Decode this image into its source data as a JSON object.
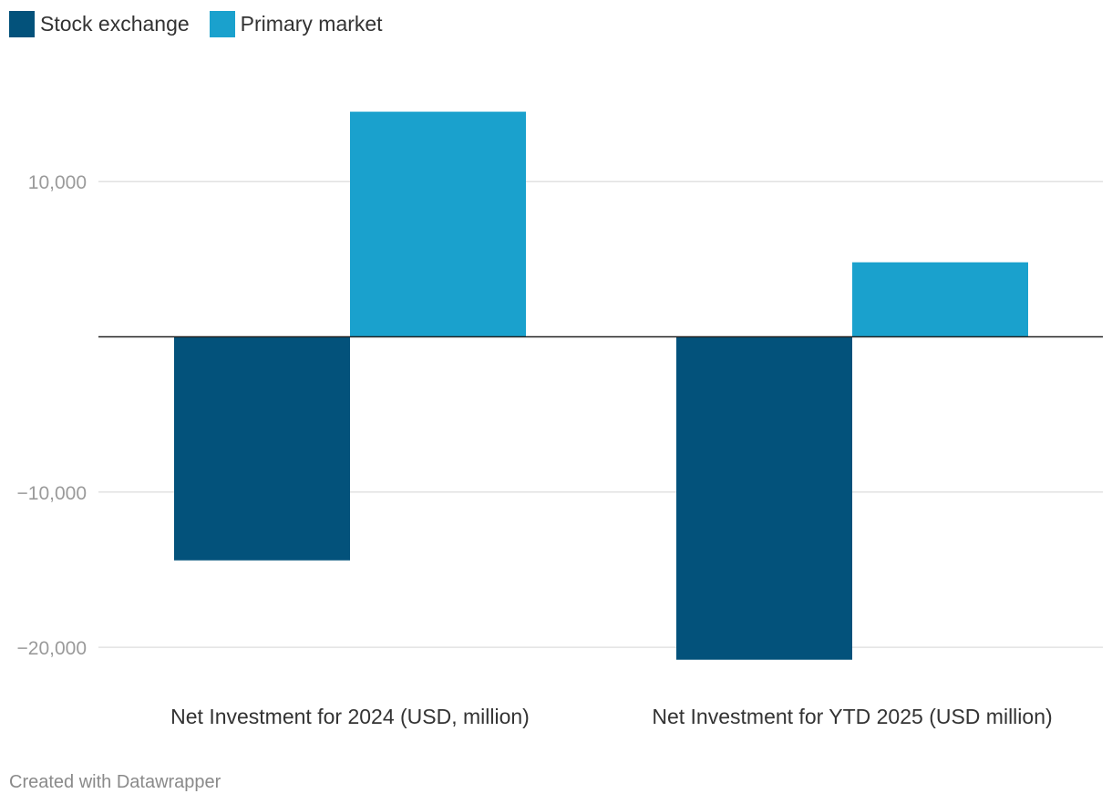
{
  "legend": [
    {
      "label": "Stock exchange",
      "color": "#03527b"
    },
    {
      "label": "Primary market",
      "color": "#1aa1cd"
    }
  ],
  "footer": {
    "credit": "Created with Datawrapper"
  },
  "chart_data": {
    "type": "bar",
    "categories": [
      "Net Investment for 2024 (USD, million)",
      "Net Investment for YTD 2025 (USD million)"
    ],
    "series": [
      {
        "name": "Stock exchange",
        "values": [
          -14400,
          -20800
        ],
        "color": "#03527b"
      },
      {
        "name": "Primary market",
        "values": [
          14500,
          4800
        ],
        "color": "#1aa1cd"
      }
    ],
    "yticks": [
      10000,
      -10000,
      -20000
    ],
    "ytick_labels": [
      "10,000",
      "−10,000",
      "−20,000"
    ],
    "ylim": [
      -21500,
      16000
    ],
    "grid": true,
    "legend_position": "top-left"
  }
}
